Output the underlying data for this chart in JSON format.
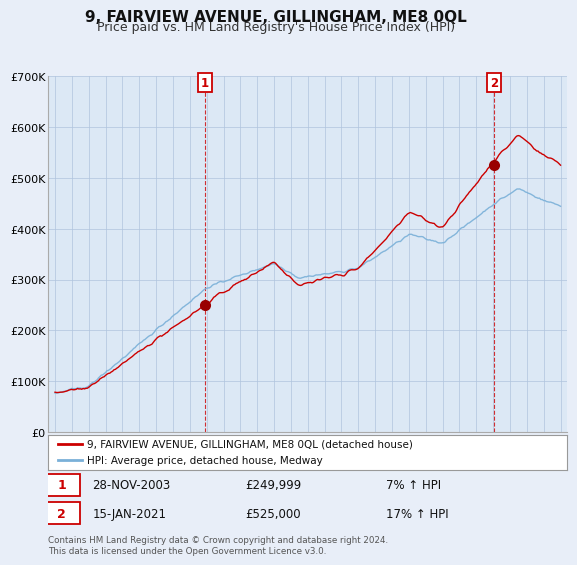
{
  "title": "9, FAIRVIEW AVENUE, GILLINGHAM, ME8 0QL",
  "subtitle": "Price paid vs. HM Land Registry's House Price Index (HPI)",
  "ylim": [
    0,
    700000
  ],
  "yticks": [
    0,
    100000,
    200000,
    300000,
    400000,
    500000,
    600000,
    700000
  ],
  "ytick_labels": [
    "£0",
    "£100K",
    "£200K",
    "£300K",
    "£400K",
    "£500K",
    "£600K",
    "£700K"
  ],
  "background_color": "#e8eef8",
  "plot_bg_color": "#dce8f5",
  "grid_color": "#b0c4de",
  "sale1_date": 2003.91,
  "sale1_price": 249999,
  "sale2_date": 2021.04,
  "sale2_price": 525000,
  "line_color_property": "#cc0000",
  "line_color_hpi": "#7ab0d8",
  "legend_property": "9, FAIRVIEW AVENUE, GILLINGHAM, ME8 0QL (detached house)",
  "legend_hpi": "HPI: Average price, detached house, Medway",
  "annotation1_date": "28-NOV-2003",
  "annotation1_price": "£249,999",
  "annotation1_hpi": "7% ↑ HPI",
  "annotation2_date": "15-JAN-2021",
  "annotation2_price": "£525,000",
  "annotation2_hpi": "17% ↑ HPI",
  "footnote": "Contains HM Land Registry data © Crown copyright and database right 2024.\nThis data is licensed under the Open Government Licence v3.0.",
  "title_fontsize": 11,
  "subtitle_fontsize": 9
}
